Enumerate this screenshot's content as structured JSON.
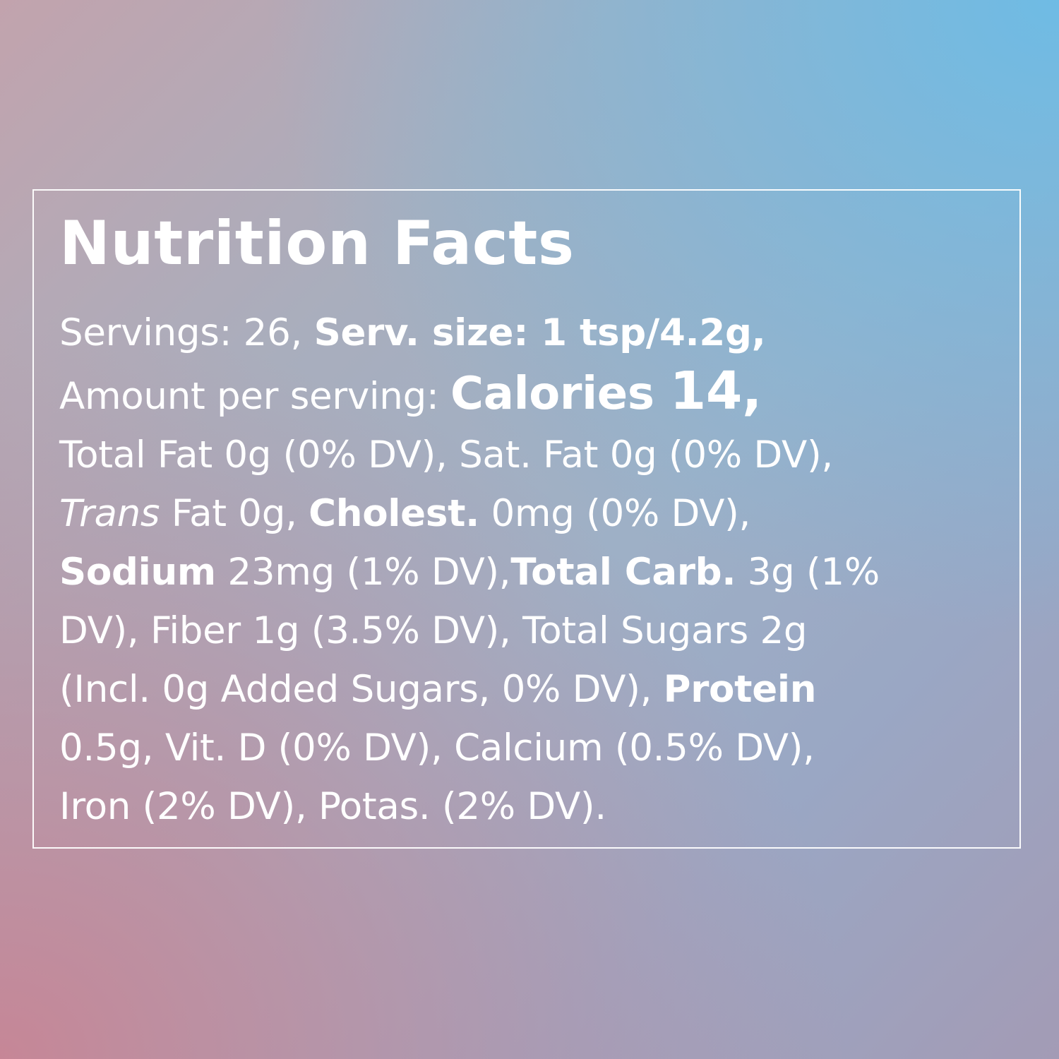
{
  "label": {
    "title": "Nutrition Facts",
    "servings_text": "Servings: 26, ",
    "serv_size_text": "Serv. size: 1 tsp/4.2g,",
    "amount_text": "Amount per serving: ",
    "calories_word": "Calories ",
    "calories_value": "14,",
    "line3": "Total Fat 0g (0% DV), Sat. Fat 0g (0% DV),",
    "trans_word": "Trans",
    "trans_rest": " Fat 0g, ",
    "cholest_label": "Cholest.",
    "cholest_value": " 0mg (0% DV),",
    "sodium_label": "Sodium",
    "sodium_value": " 23mg (1% DV),",
    "carb_label": "Total Carb.",
    "carb_value": " 3g (1%",
    "line6": "DV), Fiber 1g (3.5% DV), Total Sugars 2g",
    "line7_text": "(Incl. 0g Added Sugars, 0% DV), ",
    "protein_label": "Protein",
    "line8": "0.5g, Vit. D (0% DV), Calcium (0.5% DV),",
    "line9": "Iron (2% DV), Potas. (2% DV)."
  }
}
